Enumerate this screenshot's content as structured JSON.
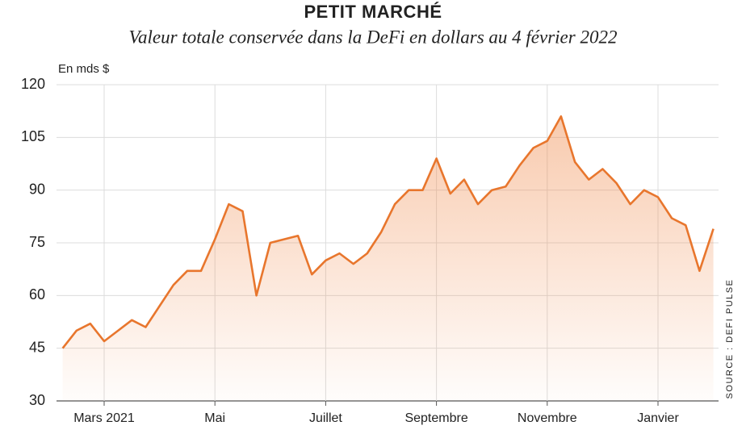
{
  "chart_data": {
    "type": "area-line",
    "title": "PETIT MARCHÉ",
    "subtitle": "Valeur totale conservée dans la DeFi en dollars au 4 février 2022",
    "y_label": "En mds $",
    "source": "SOURCE : DEFI PULSE",
    "categories": [
      null,
      null,
      null,
      "Mars 2021",
      null,
      null,
      null,
      null,
      null,
      null,
      null,
      "Mai",
      null,
      null,
      null,
      null,
      null,
      null,
      null,
      "Juillet",
      null,
      null,
      null,
      null,
      null,
      null,
      null,
      "Septembre",
      null,
      null,
      null,
      null,
      null,
      null,
      null,
      "Novembre",
      null,
      null,
      null,
      null,
      null,
      null,
      null,
      "Janvier",
      null,
      null,
      null,
      null
    ],
    "series": [
      {
        "name": "Valeur totale",
        "color": "#e8762d",
        "values": [
          45,
          50,
          52,
          47,
          50,
          53,
          51,
          57,
          63,
          67,
          67,
          76,
          86,
          84,
          60,
          75,
          76,
          77,
          66,
          70,
          72,
          69,
          72,
          78,
          86,
          90,
          90,
          99,
          89,
          93,
          86,
          90,
          91,
          97,
          102,
          104,
          111,
          98,
          93,
          96,
          92,
          86,
          90,
          88,
          82,
          80,
          67,
          79
        ]
      }
    ],
    "ylim": [
      30,
      120
    ],
    "yticks": [
      30,
      45,
      60,
      75,
      90,
      105,
      120
    ],
    "grid": true
  }
}
